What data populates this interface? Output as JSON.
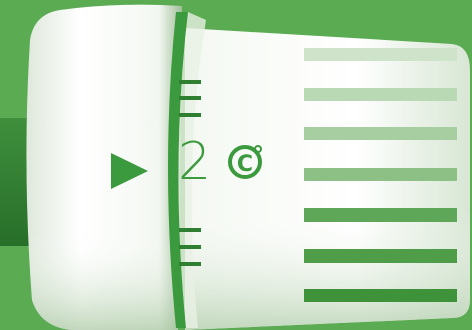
{
  "thermostat": {
    "value_prefix": "2",
    "unit_symbol": "C",
    "pointer_icon": "play-triangle-icon",
    "colors": {
      "background": "#5aab52",
      "accent": "#3c9a3e",
      "body_light": "#ffffff",
      "body_shadow": "#c9dcc5"
    }
  }
}
